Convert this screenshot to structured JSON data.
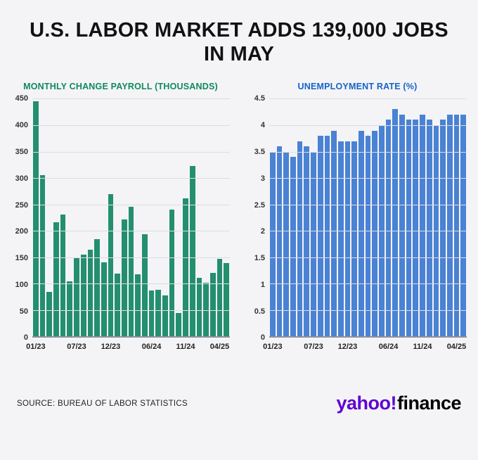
{
  "title": "U.S. LABOR MARKET ADDS 139,000 JOBS IN MAY",
  "source": "SOURCE: BUREAU OF LABOR STATISTICS",
  "logo": {
    "yahoo_text": "yahoo",
    "bang": "!",
    "finance_text": "finance",
    "purple": "#5f01d1",
    "black": "#000000"
  },
  "chart_data": [
    {
      "type": "bar",
      "title": "MONTHLY CHANGE PAYROLL (THOUSANDS)",
      "title_color": "#0e8a5c",
      "color": "#238f6f",
      "ylim": [
        0,
        450
      ],
      "yticks": [
        "450",
        "400",
        "350",
        "300",
        "250",
        "200",
        "150",
        "100",
        "50",
        "0"
      ],
      "x": [
        "01/23",
        "02/23",
        "03/23",
        "04/23",
        "05/23",
        "06/23",
        "07/23",
        "08/23",
        "09/23",
        "10/23",
        "11/23",
        "12/23",
        "01/24",
        "02/24",
        "03/24",
        "04/24",
        "05/24",
        "06/24",
        "07/24",
        "08/24",
        "09/24",
        "10/24",
        "11/24",
        "12/24",
        "01/25",
        "02/25",
        "03/25",
        "04/25",
        "05/25"
      ],
      "values": [
        445,
        305,
        85,
        216,
        231,
        105,
        150,
        155,
        165,
        184,
        140,
        269,
        119,
        222,
        246,
        118,
        193,
        87,
        88,
        78,
        240,
        44,
        261,
        323,
        111,
        102,
        120,
        147,
        139
      ],
      "xtick_labels": [
        "01/23",
        "07/23",
        "12/23",
        "06/24",
        "11/24",
        "04/25"
      ],
      "xtick_indices": [
        0,
        6,
        11,
        17,
        22,
        27
      ],
      "grid": true,
      "legend": "none"
    },
    {
      "type": "bar",
      "title": "UNEMPLOYMENT RATE (%)",
      "title_color": "#1464c8",
      "color": "#4a82d4",
      "ylim": [
        0,
        4.5
      ],
      "yticks": [
        "4.5",
        "4",
        "3.5",
        "3",
        "2.5",
        "2",
        "1.5",
        "1",
        "0.5",
        "0"
      ],
      "x": [
        "01/23",
        "02/23",
        "03/23",
        "04/23",
        "05/23",
        "06/23",
        "07/23",
        "08/23",
        "09/23",
        "10/23",
        "11/23",
        "12/23",
        "01/24",
        "02/24",
        "03/24",
        "04/24",
        "05/24",
        "06/24",
        "07/24",
        "08/24",
        "09/24",
        "10/24",
        "11/24",
        "12/24",
        "01/25",
        "02/25",
        "03/25",
        "04/25",
        "05/25"
      ],
      "values": [
        3.5,
        3.6,
        3.5,
        3.4,
        3.7,
        3.6,
        3.5,
        3.8,
        3.8,
        3.9,
        3.7,
        3.7,
        3.7,
        3.9,
        3.8,
        3.9,
        4.0,
        4.1,
        4.3,
        4.2,
        4.1,
        4.1,
        4.2,
        4.1,
        4.0,
        4.1,
        4.2,
        4.2,
        4.2
      ],
      "xtick_labels": [
        "01/23",
        "07/23",
        "12/23",
        "06/24",
        "11/24",
        "04/25"
      ],
      "xtick_indices": [
        0,
        6,
        11,
        17,
        22,
        27
      ],
      "grid": true,
      "legend": "none"
    }
  ]
}
